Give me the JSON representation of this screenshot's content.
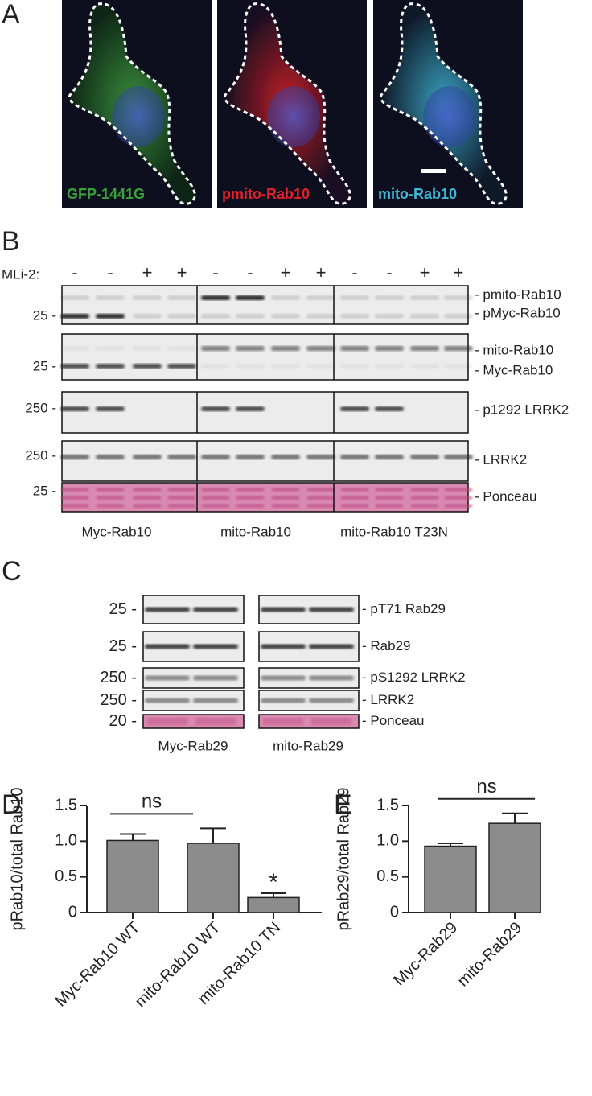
{
  "panel_a": {
    "label": "A",
    "images": [
      "GFP-1441G",
      "pmito-Rab10",
      "mito-Rab10"
    ]
  },
  "panel_b": {
    "label": "B",
    "treatment_label": "MLi-2:",
    "treatments": [
      "-",
      "-",
      "+",
      "+",
      "-",
      "-",
      "+",
      "+",
      "-",
      "-",
      "+",
      "+"
    ],
    "rows": [
      {
        "marker": "25 -",
        "bands": [
          "- pmito-Rab10",
          "- pMyc-Rab10"
        ]
      },
      {
        "marker": "25 -",
        "bands": [
          "- mito-Rab10",
          "- Myc-Rab10"
        ]
      },
      {
        "marker": "250 -",
        "bands": [
          "- p1292 LRRK2"
        ]
      },
      {
        "marker": "250 -",
        "bands": [
          "- LRRK2"
        ]
      },
      {
        "marker": "25 -",
        "bands": [
          "- Ponceau"
        ]
      }
    ],
    "groups": [
      "Myc-Rab10",
      "mito-Rab10",
      "mito-Rab10 T23N"
    ]
  },
  "panel_c": {
    "label": "C",
    "rows": [
      {
        "marker": "25 -",
        "band": "- pT71 Rab29"
      },
      {
        "marker": "25 -",
        "band": "- Rab29"
      },
      {
        "marker": "250 -",
        "band": "- pS1292 LRRK2"
      },
      {
        "marker": "250 -",
        "band": "- LRRK2"
      },
      {
        "marker": "20 -",
        "band": "- Ponceau"
      }
    ],
    "groups": [
      "Myc-Rab29",
      "mito-Rab29"
    ]
  },
  "chart_data": [
    {
      "type": "bar",
      "panel": "D",
      "ylabel": "pRab10/total Rab10",
      "categories": [
        "Myc-Rab10 WT",
        "mito-Rab10 WT",
        "mito-Rab10 TN"
      ],
      "values": [
        1.01,
        0.97,
        0.21
      ],
      "errors": [
        0.09,
        0.21,
        0.06
      ],
      "color": "#8c8c8c",
      "ylim": [
        0,
        1.5
      ],
      "yticks": [
        0,
        0.5,
        {
          "value": 1,
          "label": "1.0"
        },
        1.5
      ],
      "annotations": [
        "ns",
        "*"
      ]
    },
    {
      "type": "bar",
      "panel": "E",
      "ylabel": "pRab29/total Rab29",
      "categories": [
        "Myc-Rab29",
        "mito-Rab29"
      ],
      "values": [
        0.93,
        1.25
      ],
      "errors": [
        0.04,
        0.14
      ],
      "color": "#8c8c8c",
      "ylim": [
        0,
        1.5
      ],
      "yticks": [
        0,
        0.5,
        {
          "value": 1,
          "label": "1.0"
        },
        1.5
      ],
      "annotations": [
        "ns"
      ]
    }
  ]
}
